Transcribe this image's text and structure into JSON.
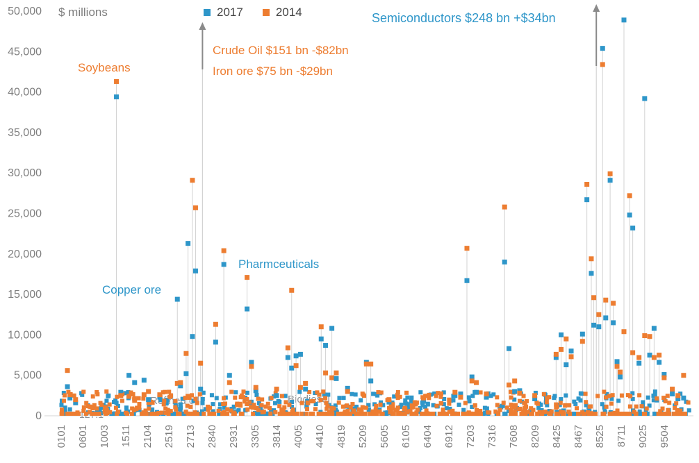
{
  "chart_data": {
    "type": "scatter",
    "title": "",
    "ylabel": "$ millions",
    "ylim": [
      0,
      50000
    ],
    "grid": false,
    "legend_position": "top",
    "axis_text_color": "#7F7F7F",
    "dropline_color": "#D2D2D2",
    "arrow_color": "#8A8A8A",
    "y_tick_labels": [
      "0",
      "5,000",
      "10,000",
      "15,000",
      "20,000",
      "25,000",
      "30,000",
      "35,000",
      "40,000",
      "45,000",
      "50,000"
    ],
    "x_tick_labels": [
      "0101",
      "0601",
      "1003",
      "1511",
      "2104",
      "2519",
      "2713",
      "2840",
      "2931",
      "3305",
      "3814",
      "4005",
      "4410",
      "4819",
      "5209",
      "5605",
      "6105",
      "6404",
      "6912",
      "7203",
      "7316",
      "7608",
      "8209",
      "8425",
      "8467",
      "8525",
      "8711",
      "9025",
      "9504"
    ],
    "series": [
      {
        "name": "2017",
        "color": "#2E96C9"
      },
      {
        "name": "2014",
        "color": "#ED7D31"
      }
    ],
    "peaks_format": [
      "x_fraction_along_axis",
      "value_2014_millions",
      "value_2017_millions"
    ],
    "peaks": [
      [
        0.01,
        5600,
        3600
      ],
      [
        0.014,
        2600,
        2200
      ],
      [
        0.023,
        2000,
        1600
      ],
      [
        0.088,
        41300,
        39400
      ],
      [
        0.095,
        2500,
        2900
      ],
      [
        0.108,
        2400,
        5000
      ],
      [
        0.117,
        1900,
        4100
      ],
      [
        0.132,
        2600,
        4400
      ],
      [
        0.139,
        3000,
        2000
      ],
      [
        0.157,
        2600,
        2300
      ],
      [
        0.185,
        4000,
        14400
      ],
      [
        0.19,
        4100,
        3700
      ],
      [
        0.199,
        7700,
        5200
      ],
      [
        0.202,
        2400,
        21300
      ],
      [
        0.209,
        29100,
        9800
      ],
      [
        0.214,
        25700,
        17900
      ],
      [
        0.222,
        6500,
        3300
      ],
      [
        0.246,
        11300,
        9100
      ],
      [
        0.259,
        20400,
        18700
      ],
      [
        0.268,
        4100,
        5000
      ],
      [
        0.296,
        17100,
        13200
      ],
      [
        0.303,
        6100,
        6600
      ],
      [
        0.31,
        3500,
        3100
      ],
      [
        0.343,
        3300,
        2500
      ],
      [
        0.361,
        8400,
        7200
      ],
      [
        0.367,
        15500,
        5900
      ],
      [
        0.374,
        6200,
        7400
      ],
      [
        0.381,
        3500,
        7600
      ],
      [
        0.389,
        4000,
        3300
      ],
      [
        0.414,
        11000,
        9500
      ],
      [
        0.421,
        5300,
        8700
      ],
      [
        0.431,
        4700,
        10800
      ],
      [
        0.438,
        5300,
        4600
      ],
      [
        0.456,
        3000,
        3400
      ],
      [
        0.486,
        6400,
        6600
      ],
      [
        0.493,
        6400,
        4300
      ],
      [
        0.522,
        2000,
        1700
      ],
      [
        0.577,
        2200,
        1800
      ],
      [
        0.627,
        2900,
        2500
      ],
      [
        0.636,
        2300,
        2700
      ],
      [
        0.646,
        20700,
        16700
      ],
      [
        0.654,
        4300,
        4800
      ],
      [
        0.661,
        4100,
        2900
      ],
      [
        0.677,
        2700,
        2300
      ],
      [
        0.706,
        25800,
        19000
      ],
      [
        0.713,
        3800,
        8300
      ],
      [
        0.722,
        4300,
        3000
      ],
      [
        0.73,
        2800,
        3100
      ],
      [
        0.754,
        2500,
        2100
      ],
      [
        0.788,
        7600,
        7200
      ],
      [
        0.796,
        8200,
        10000
      ],
      [
        0.804,
        9500,
        6300
      ],
      [
        0.812,
        7300,
        8000
      ],
      [
        0.83,
        9200,
        10100
      ],
      [
        0.837,
        28600,
        26700
      ],
      [
        0.844,
        19400,
        17600
      ],
      [
        0.848,
        14600,
        11200
      ],
      [
        0.856,
        12500,
        11000
      ],
      [
        0.862,
        43400,
        45400
      ],
      [
        0.867,
        14300,
        12100
      ],
      [
        0.874,
        29900,
        29100
      ],
      [
        0.879,
        13900,
        11500
      ],
      [
        0.885,
        6100,
        6700
      ],
      [
        0.89,
        5400,
        4800
      ],
      [
        0.896,
        10400,
        48900
      ],
      [
        0.905,
        27200,
        24800
      ],
      [
        0.91,
        7800,
        23200
      ],
      [
        0.92,
        7200,
        6500
      ],
      [
        0.929,
        9900,
        39200
      ],
      [
        0.937,
        9800,
        7500
      ],
      [
        0.944,
        7200,
        10800
      ],
      [
        0.952,
        7500,
        6600
      ],
      [
        0.96,
        4700,
        5100
      ],
      [
        0.973,
        3300,
        2700
      ],
      [
        0.982,
        2500,
        2100
      ],
      [
        0.991,
        5000,
        2200
      ]
    ],
    "offscale_arrows": [
      {
        "x": 0.225,
        "tip_y": 32,
        "tail_y": 100
      },
      {
        "x": 0.852,
        "tip_y": 6,
        "tail_y": 95
      }
    ],
    "background": {
      "count": 420,
      "max_value": 3000,
      "seed": 7
    },
    "annotations": [
      {
        "text": "Soybeans",
        "x": 112,
        "y": 88,
        "color": "#ED7D31",
        "size": 17,
        "layer": "over"
      },
      {
        "text": "Copper ore",
        "x": 147,
        "y": 408,
        "color": "#2E96C9",
        "size": 17,
        "layer": "over"
      },
      {
        "text": "Crude Oil $151 bn -$82bn",
        "x": 306,
        "y": 63,
        "color": "#ED7D31",
        "size": 17,
        "layer": "over"
      },
      {
        "text": "Iron ore $75 bn -$29bn",
        "x": 306,
        "y": 93,
        "color": "#ED7D31",
        "size": 17,
        "layer": "over"
      },
      {
        "text": "Pharmceuticals",
        "x": 343,
        "y": 371,
        "color": "#2E96C9",
        "size": 17,
        "layer": "over"
      },
      {
        "text": "Semiconductors $248 bn +$34bn",
        "x": 535,
        "y": 16,
        "color": "#2E96C9",
        "size": 18,
        "layer": "over"
      },
      {
        "text": "Refined oil",
        "x": 216,
        "y": 569,
        "color": "#8C9196",
        "size": 15,
        "layer": "under"
      },
      {
        "text": "Biodiesel",
        "x": 414,
        "y": 567,
        "color": "#8C9196",
        "size": 15,
        "layer": "under"
      },
      {
        "text": "127.1",
        "x": 114,
        "y": 589,
        "color": "#8C9196",
        "size": 14,
        "layer": "under"
      }
    ]
  }
}
